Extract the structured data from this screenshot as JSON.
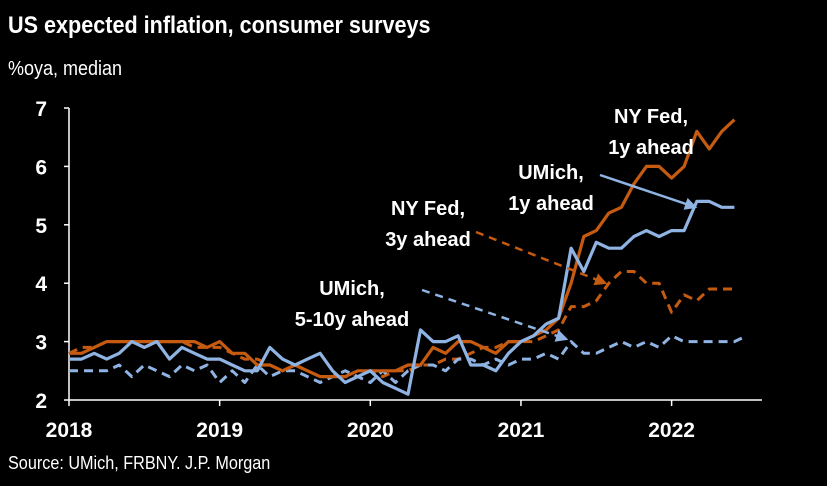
{
  "colors": {
    "background": "#000000",
    "nyfed": "#c55a11",
    "umich": "#8fb4e3"
  },
  "chart_data": {
    "type": "line",
    "title": "US expected inflation, consumer surveys",
    "ylabel": "%oya, median",
    "source": "Source: UMich, FRBNY. J.P. Morgan",
    "x_unit": "year (fractional)",
    "xlim": [
      2018.0,
      2022.6
    ],
    "ylim": [
      2,
      7
    ],
    "x_tick_labels": [
      "2018",
      "2019",
      "2020",
      "2021",
      "2022"
    ],
    "y_tick_labels": [
      "2",
      "3",
      "4",
      "5",
      "6",
      "7"
    ],
    "grid": false,
    "series": [
      {
        "name": "NY Fed, 1y ahead",
        "color": "#c55a11",
        "style": "solid",
        "x": [
          2018.0,
          2018.083,
          2018.167,
          2018.25,
          2018.333,
          2018.417,
          2018.5,
          2018.583,
          2018.667,
          2018.75,
          2018.833,
          2018.917,
          2019.0,
          2019.083,
          2019.167,
          2019.25,
          2019.333,
          2019.417,
          2019.5,
          2019.583,
          2019.667,
          2019.75,
          2019.833,
          2019.917,
          2020.0,
          2020.083,
          2020.167,
          2020.25,
          2020.333,
          2020.417,
          2020.5,
          2020.583,
          2020.667,
          2020.75,
          2020.833,
          2020.917,
          2021.0,
          2021.083,
          2021.167,
          2021.25,
          2021.333,
          2021.417,
          2021.5,
          2021.583,
          2021.667,
          2021.75,
          2021.833,
          2021.917,
          2022.0,
          2022.083,
          2022.167,
          2022.25,
          2022.333,
          2022.417
        ],
        "values": [
          2.8,
          2.8,
          2.9,
          3.0,
          3.0,
          3.0,
          3.0,
          3.0,
          3.0,
          3.0,
          3.0,
          2.9,
          3.0,
          2.8,
          2.8,
          2.6,
          2.6,
          2.5,
          2.6,
          2.5,
          2.4,
          2.4,
          2.4,
          2.5,
          2.5,
          2.5,
          2.5,
          2.6,
          2.6,
          2.9,
          2.8,
          3.0,
          3.0,
          2.9,
          2.8,
          3.0,
          3.0,
          3.1,
          3.2,
          3.4,
          4.0,
          4.8,
          4.9,
          5.2,
          5.3,
          5.7,
          6.0,
          6.0,
          5.8,
          6.0,
          6.6,
          6.3,
          6.6,
          6.8
        ],
        "label": "NY Fed,\n1y ahead"
      },
      {
        "name": "UMich, 1y ahead",
        "color": "#8fb4e3",
        "style": "solid",
        "x": [
          2018.0,
          2018.083,
          2018.167,
          2018.25,
          2018.333,
          2018.417,
          2018.5,
          2018.583,
          2018.667,
          2018.75,
          2018.833,
          2018.917,
          2019.0,
          2019.083,
          2019.167,
          2019.25,
          2019.333,
          2019.417,
          2019.5,
          2019.583,
          2019.667,
          2019.75,
          2019.833,
          2019.917,
          2020.0,
          2020.083,
          2020.167,
          2020.25,
          2020.333,
          2020.417,
          2020.5,
          2020.583,
          2020.667,
          2020.75,
          2020.833,
          2020.917,
          2021.0,
          2021.083,
          2021.167,
          2021.25,
          2021.333,
          2021.417,
          2021.5,
          2021.583,
          2021.667,
          2021.75,
          2021.833,
          2021.917,
          2022.0,
          2022.083,
          2022.167,
          2022.25,
          2022.333,
          2022.417
        ],
        "values": [
          2.7,
          2.7,
          2.8,
          2.7,
          2.8,
          3.0,
          2.9,
          3.0,
          2.7,
          2.9,
          2.8,
          2.7,
          2.7,
          2.6,
          2.5,
          2.5,
          2.9,
          2.7,
          2.6,
          2.7,
          2.8,
          2.5,
          2.3,
          2.4,
          2.5,
          2.3,
          2.2,
          2.1,
          3.2,
          3.0,
          3.0,
          3.1,
          2.6,
          2.6,
          2.5,
          2.8,
          3.0,
          3.1,
          3.3,
          3.4,
          4.6,
          4.2,
          4.7,
          4.6,
          4.6,
          4.8,
          4.9,
          4.8,
          4.9,
          4.9,
          5.4,
          5.4,
          5.3,
          5.3
        ],
        "label": "UMich,\n1y ahead"
      },
      {
        "name": "NY Fed, 3y ahead",
        "color": "#c55a11",
        "style": "dashed",
        "x": [
          2018.0,
          2018.083,
          2018.167,
          2018.25,
          2018.333,
          2018.417,
          2018.5,
          2018.583,
          2018.667,
          2018.75,
          2018.833,
          2018.917,
          2019.0,
          2019.083,
          2019.167,
          2019.25,
          2019.333,
          2019.417,
          2019.5,
          2019.583,
          2019.667,
          2019.75,
          2019.833,
          2019.917,
          2020.0,
          2020.083,
          2020.167,
          2020.25,
          2020.333,
          2020.417,
          2020.5,
          2020.583,
          2020.667,
          2020.75,
          2020.833,
          2020.917,
          2021.0,
          2021.083,
          2021.167,
          2021.25,
          2021.333,
          2021.417,
          2021.5,
          2021.583,
          2021.667,
          2021.75,
          2021.833,
          2021.917,
          2022.0,
          2022.083,
          2022.167,
          2022.25,
          2022.333,
          2022.417
        ],
        "values": [
          2.8,
          2.9,
          2.9,
          3.0,
          3.0,
          3.0,
          2.9,
          3.0,
          3.0,
          3.0,
          2.9,
          2.9,
          2.9,
          2.8,
          2.7,
          2.7,
          2.6,
          2.5,
          2.6,
          2.5,
          2.4,
          2.4,
          2.4,
          2.4,
          2.5,
          2.4,
          2.5,
          2.5,
          2.6,
          2.6,
          2.7,
          2.7,
          2.8,
          2.9,
          2.9,
          3.0,
          3.0,
          3.0,
          3.1,
          3.2,
          3.6,
          3.6,
          3.7,
          4.0,
          4.2,
          4.2,
          4.0,
          4.0,
          3.5,
          3.8,
          3.7,
          3.9,
          3.9,
          3.9
        ],
        "label": "NY Fed,\n3y ahead"
      },
      {
        "name": "UMich, 5-10y ahead",
        "color": "#8fb4e3",
        "style": "dashed",
        "x": [
          2018.0,
          2018.083,
          2018.167,
          2018.25,
          2018.333,
          2018.417,
          2018.5,
          2018.583,
          2018.667,
          2018.75,
          2018.833,
          2018.917,
          2019.0,
          2019.083,
          2019.167,
          2019.25,
          2019.333,
          2019.417,
          2019.5,
          2019.583,
          2019.667,
          2019.75,
          2019.833,
          2019.917,
          2020.0,
          2020.083,
          2020.167,
          2020.25,
          2020.333,
          2020.417,
          2020.5,
          2020.583,
          2020.667,
          2020.75,
          2020.833,
          2020.917,
          2021.0,
          2021.083,
          2021.167,
          2021.25,
          2021.333,
          2021.417,
          2021.5,
          2021.583,
          2021.667,
          2021.75,
          2021.833,
          2021.917,
          2022.0,
          2022.083,
          2022.167,
          2022.25,
          2022.333,
          2022.417,
          2022.5
        ],
        "values": [
          2.5,
          2.5,
          2.5,
          2.5,
          2.6,
          2.4,
          2.6,
          2.5,
          2.4,
          2.6,
          2.5,
          2.6,
          2.3,
          2.5,
          2.3,
          2.6,
          2.4,
          2.5,
          2.5,
          2.4,
          2.3,
          2.4,
          2.5,
          2.4,
          2.3,
          2.5,
          2.3,
          2.5,
          2.6,
          2.6,
          2.5,
          2.7,
          2.7,
          2.6,
          2.7,
          2.6,
          2.7,
          2.7,
          2.8,
          2.7,
          3.0,
          2.8,
          2.8,
          2.9,
          3.0,
          2.9,
          3.0,
          2.9,
          3.1,
          3.0,
          3.0,
          3.0,
          3.0,
          3.0,
          3.1
        ],
        "label": "UMich,\n5-10y ahead"
      }
    ]
  }
}
